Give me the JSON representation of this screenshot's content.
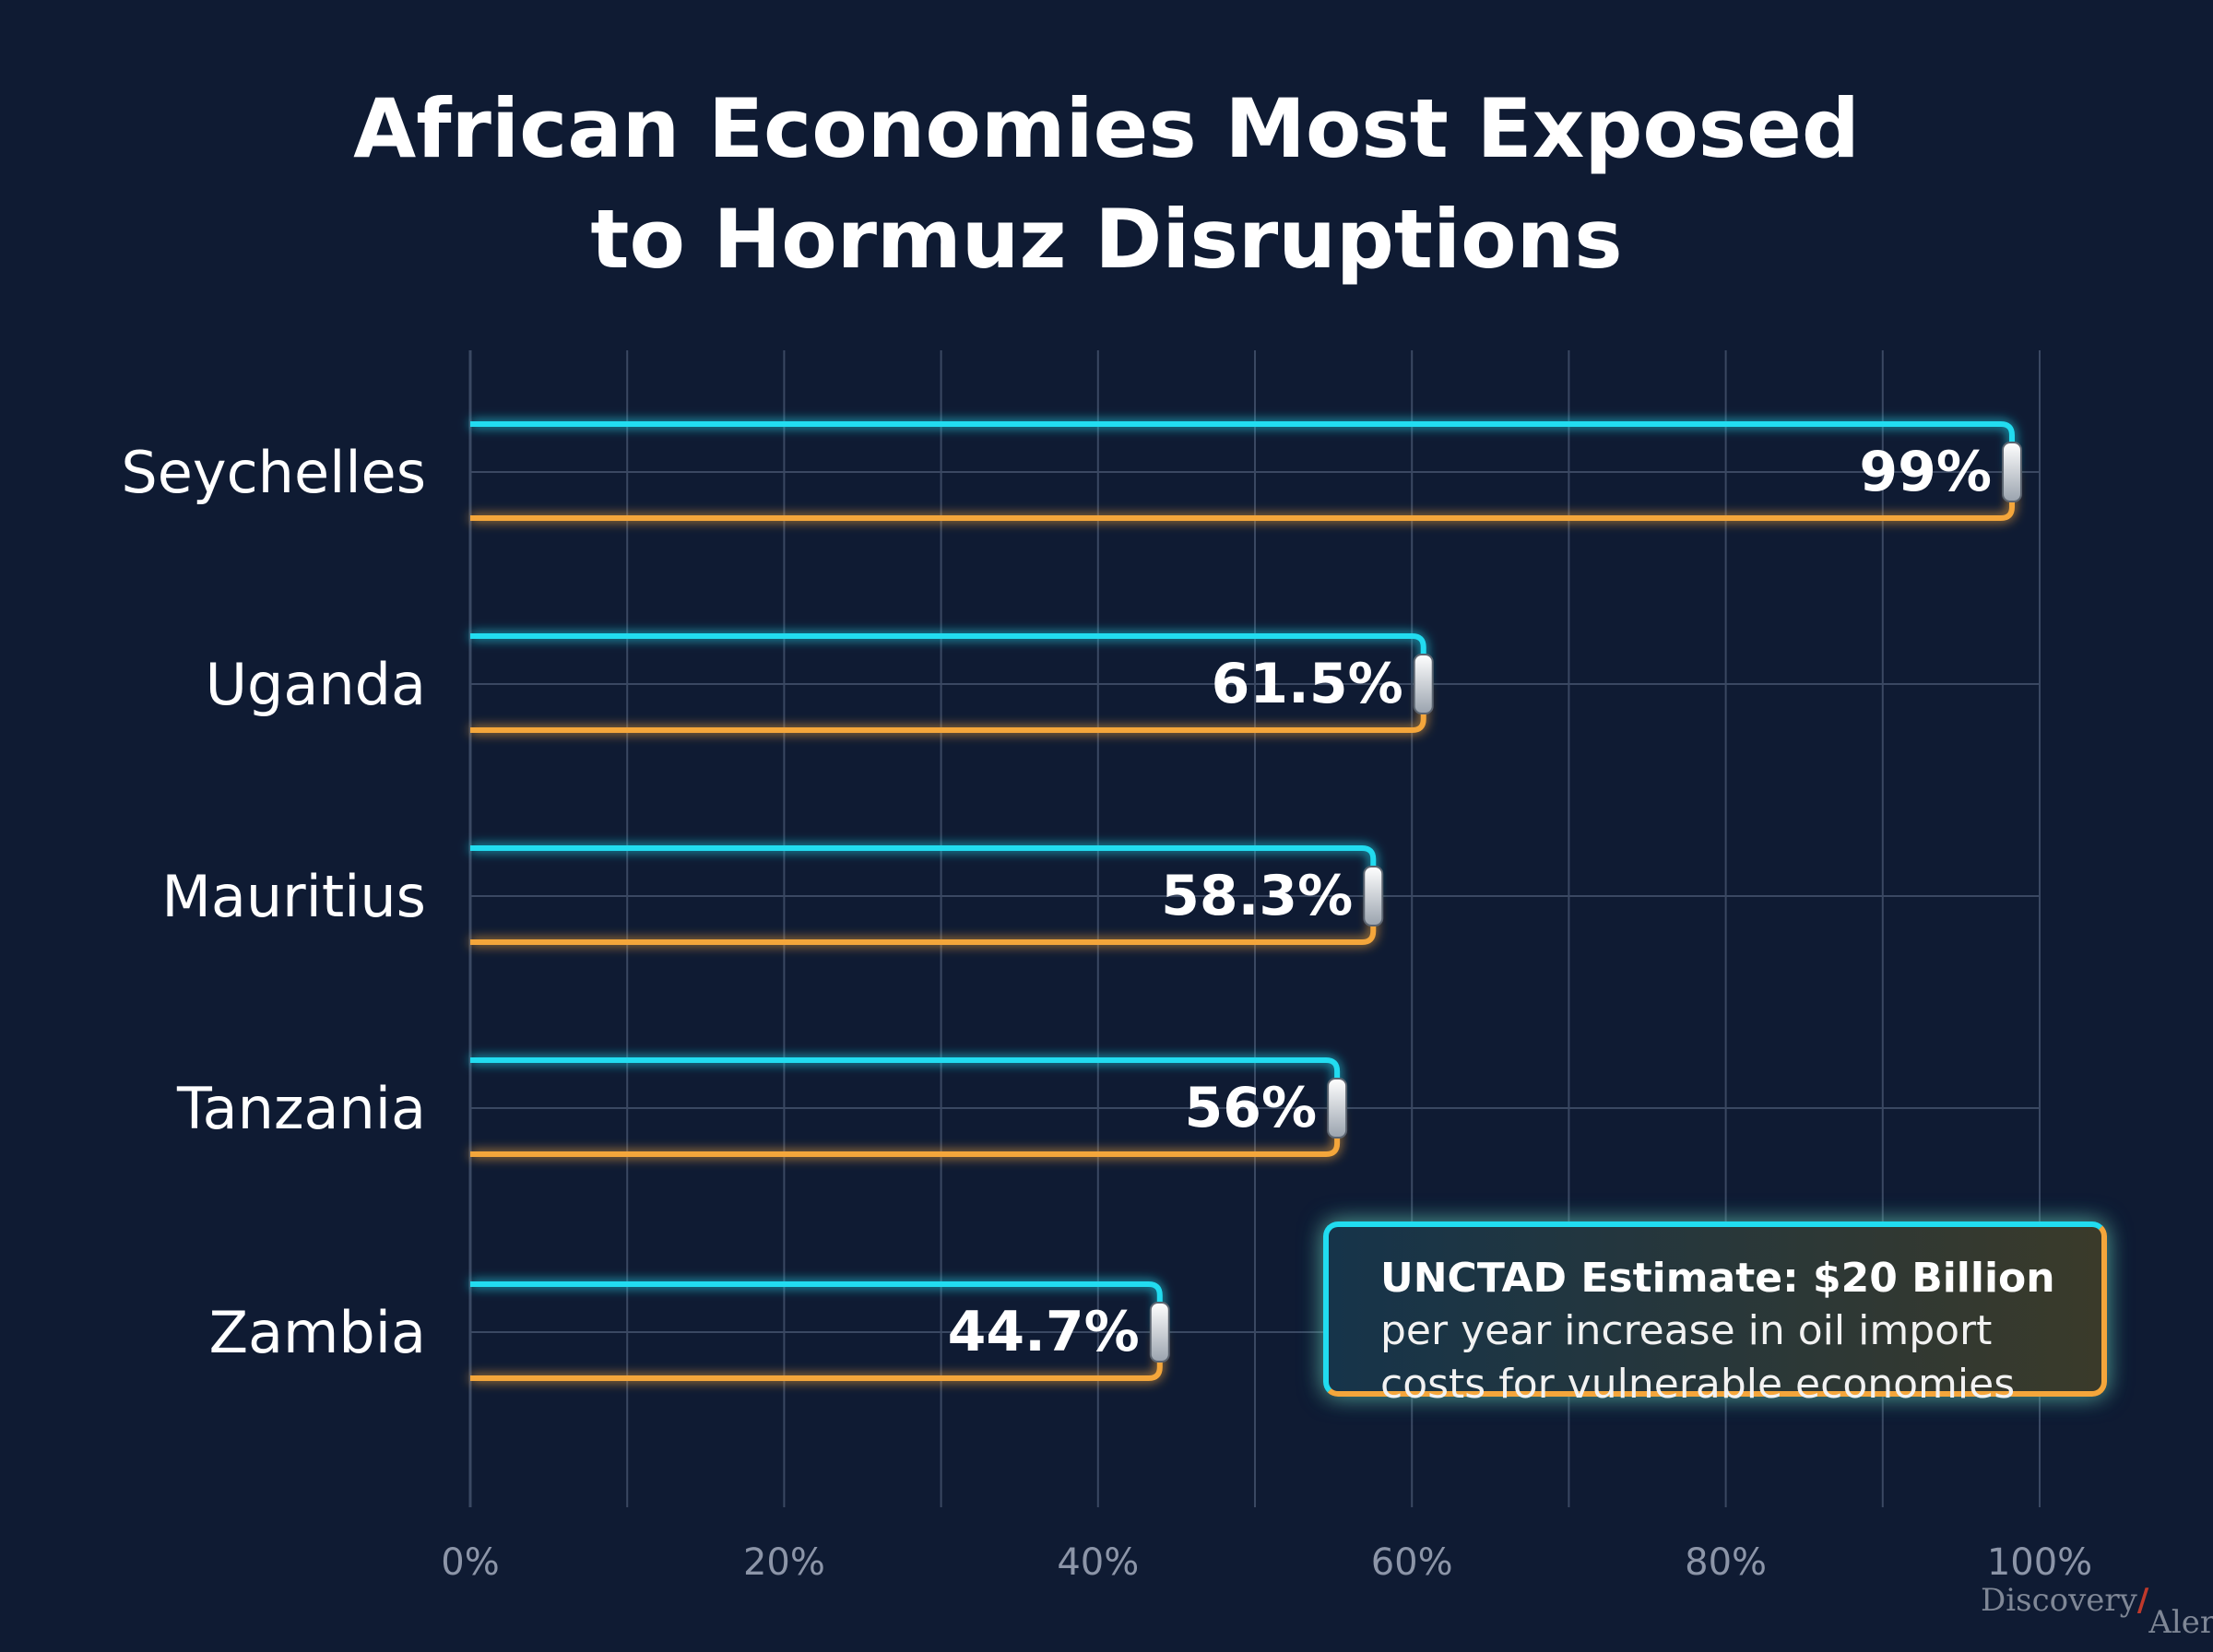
{
  "chart_data": {
    "type": "bar",
    "orientation": "horizontal",
    "title_lines": [
      "African Economies Most Exposed",
      "to Hormuz Disruptions"
    ],
    "categories": [
      "Seychelles",
      "Uganda",
      "Mauritius",
      "Tanzania",
      "Zambia"
    ],
    "values": [
      99,
      61.5,
      58.3,
      56,
      44.7
    ],
    "value_labels": [
      "99%",
      "61.5%",
      "58.3%",
      "56%",
      "44.7%"
    ],
    "xlim": [
      0,
      100
    ],
    "x_ticks": [
      0,
      20,
      40,
      60,
      80,
      100
    ],
    "x_tick_labels": [
      "0%",
      "20%",
      "40%",
      "60%",
      "80%",
      "100%"
    ],
    "grid": true,
    "colors": {
      "background": "#0f1b33",
      "bar_fill": "#0ff8ff",
      "frame_top": "#21dcf0",
      "frame_bottom": "#f4a63b",
      "grid": "#3a4862",
      "text": "#ffffff",
      "tick_text": "#8c95a8"
    },
    "annotation": {
      "headline": "UNCTAD Estimate: $20 Billion",
      "lines": [
        "per year increase in oil import",
        "costs for vulnerable economies"
      ]
    }
  },
  "watermark": {
    "part1": "Discovery",
    "part2": "Alert"
  }
}
